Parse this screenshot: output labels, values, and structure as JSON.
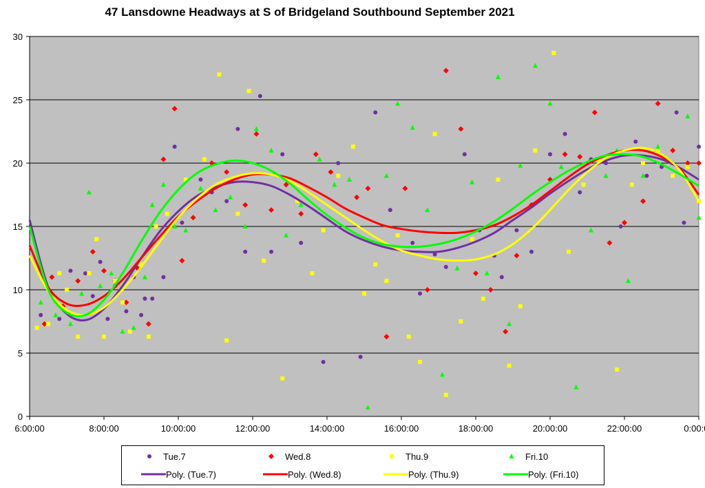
{
  "chart_data": {
    "type": "scatter",
    "title": "47 Lansdowne Headways at S of Bridgeland Southbound September 2021",
    "xlabel": "",
    "ylabel": "",
    "xlim": [
      6,
      24
    ],
    "ylim": [
      0,
      30
    ],
    "x_ticks": [
      "6:00:00",
      "8:00:00",
      "10:00:00",
      "12:00:00",
      "14:00:00",
      "16:00:00",
      "18:00:00",
      "20:00:00",
      "22:00:00",
      "0:00:00"
    ],
    "y_ticks": [
      "0",
      "5",
      "10",
      "15",
      "20",
      "25",
      "30"
    ],
    "grid": "horizontal",
    "plot_background": "#c0c0c0",
    "legend_position": "bottom",
    "series": [
      {
        "name": "Tue.7",
        "marker": "circle",
        "color": "#7030a0",
        "x": [
          6.3,
          6.8,
          7.1,
          7.5,
          7.7,
          7.9,
          8.1,
          8.3,
          8.6,
          8.8,
          9.0,
          9.1,
          9.3,
          9.6,
          9.9,
          10.1,
          10.6,
          10.9,
          11.3,
          11.6,
          11.8,
          12.2,
          12.5,
          12.8,
          13.3,
          13.9,
          14.3,
          14.9,
          15.3,
          15.7,
          16.3,
          16.5,
          16.9,
          17.2,
          17.7,
          18.1,
          18.5,
          18.7,
          19.1,
          19.5,
          20.0,
          20.4,
          20.8,
          21.1,
          21.5,
          21.9,
          22.3,
          22.6,
          23.0,
          23.4,
          23.6,
          24.0
        ],
        "y": [
          8.0,
          7.7,
          11.5,
          11.3,
          9.5,
          12.2,
          7.7,
          10.3,
          8.3,
          11.0,
          8.0,
          9.3,
          9.3,
          11.0,
          21.3,
          15.3,
          18.7,
          17.7,
          17.0,
          22.7,
          13.0,
          25.3,
          13.0,
          20.7,
          13.7,
          4.3,
          20.0,
          4.7,
          24.0,
          16.3,
          13.7,
          9.7,
          12.8,
          11.8,
          20.7,
          14.7,
          12.7,
          11.0,
          14.7,
          13.0,
          20.7,
          22.3,
          17.7,
          20.3,
          20.0,
          15.0,
          21.7,
          19.0,
          19.7,
          24.0,
          15.3,
          21.3
        ]
      },
      {
        "name": "Wed.8",
        "marker": "diamond",
        "color": "#ff0000",
        "x": [
          6.4,
          6.6,
          6.9,
          7.3,
          7.7,
          8.0,
          8.3,
          8.6,
          8.9,
          9.2,
          9.6,
          9.9,
          10.1,
          10.4,
          10.9,
          11.3,
          11.8,
          12.1,
          12.5,
          12.9,
          13.3,
          13.7,
          14.1,
          14.8,
          15.1,
          15.6,
          16.1,
          16.7,
          17.2,
          17.6,
          18.0,
          18.4,
          18.8,
          19.1,
          19.5,
          20.0,
          20.4,
          20.8,
          21.2,
          21.6,
          22.0,
          22.5,
          22.9,
          23.3,
          23.7,
          24.0
        ],
        "y": [
          7.3,
          11.0,
          8.7,
          10.7,
          13.0,
          11.5,
          10.7,
          9.0,
          11.7,
          7.3,
          20.3,
          24.3,
          12.3,
          15.7,
          20.0,
          19.3,
          16.7,
          22.3,
          16.3,
          18.3,
          16.0,
          20.7,
          19.3,
          17.3,
          18.0,
          6.3,
          18.0,
          10.0,
          27.3,
          22.7,
          11.3,
          10.0,
          6.7,
          12.7,
          16.7,
          18.7,
          20.7,
          20.5,
          24.0,
          13.7,
          15.3,
          17.0,
          24.7,
          21.0,
          20.0,
          20.0
        ]
      },
      {
        "name": "Thu.9",
        "marker": "square",
        "color": "#ffff00",
        "x": [
          6.2,
          6.5,
          6.8,
          7.0,
          7.3,
          7.6,
          7.8,
          8.0,
          8.3,
          8.5,
          8.7,
          9.0,
          9.2,
          9.4,
          9.7,
          10.2,
          10.7,
          11.1,
          11.3,
          11.6,
          11.9,
          12.3,
          12.8,
          13.2,
          13.6,
          13.9,
          14.3,
          14.7,
          15.0,
          15.3,
          15.6,
          15.9,
          16.2,
          16.5,
          16.9,
          17.2,
          17.6,
          17.9,
          18.2,
          18.6,
          18.9,
          19.2,
          19.6,
          20.1,
          20.5,
          20.9,
          21.3,
          21.8,
          22.2,
          22.5,
          22.9,
          23.3,
          23.7,
          24.0
        ],
        "y": [
          7.0,
          7.3,
          11.3,
          10.0,
          6.3,
          11.3,
          14.0,
          6.3,
          10.7,
          9.0,
          6.7,
          12.0,
          6.3,
          15.0,
          16.0,
          18.7,
          20.3,
          27.0,
          6.0,
          16.0,
          25.7,
          12.3,
          3.0,
          17.0,
          11.3,
          14.7,
          19.0,
          21.3,
          9.7,
          12.0,
          10.7,
          14.3,
          6.3,
          4.3,
          22.3,
          1.7,
          7.5,
          14.0,
          9.3,
          18.7,
          4.0,
          8.7,
          21.0,
          28.7,
          13.0,
          18.3,
          20.3,
          3.7,
          18.3,
          20.0,
          21.0,
          19.0,
          19.7,
          17.0
        ]
      },
      {
        "name": "Fri.10",
        "marker": "triangle",
        "color": "#00ff00",
        "x": [
          6.3,
          6.7,
          7.1,
          7.4,
          7.6,
          7.9,
          8.2,
          8.5,
          8.8,
          9.1,
          9.3,
          9.6,
          9.9,
          10.2,
          10.6,
          11.0,
          11.4,
          11.8,
          12.1,
          12.5,
          12.9,
          13.3,
          13.8,
          14.2,
          14.6,
          15.1,
          15.6,
          15.9,
          16.3,
          16.7,
          17.1,
          17.5,
          17.9,
          18.3,
          18.6,
          18.9,
          19.2,
          19.6,
          20.0,
          20.3,
          20.7,
          21.1,
          21.5,
          21.8,
          22.1,
          22.5,
          22.9,
          23.3,
          23.7,
          24.0
        ],
        "y": [
          9.0,
          8.0,
          7.3,
          9.7,
          17.7,
          10.3,
          11.3,
          6.7,
          7.0,
          11.0,
          16.7,
          18.3,
          15.0,
          14.7,
          18.0,
          16.3,
          17.3,
          15.0,
          22.7,
          21.0,
          14.3,
          16.7,
          20.3,
          18.3,
          18.7,
          0.7,
          19.0,
          24.7,
          22.8,
          16.3,
          3.3,
          11.7,
          18.5,
          11.3,
          26.8,
          7.3,
          19.8,
          27.7,
          24.7,
          19.7,
          2.3,
          14.7,
          19.0,
          21.0,
          10.7,
          19.0,
          21.3,
          20.0,
          23.7,
          15.7
        ]
      }
    ],
    "trendlines": [
      {
        "name": "Poly. (Tue.7)",
        "color": "#7030a0",
        "points": [
          [
            6.0,
            15.5
          ],
          [
            6.5,
            10.2
          ],
          [
            7.0,
            8.1
          ],
          [
            7.5,
            7.6
          ],
          [
            8.0,
            8.5
          ],
          [
            8.5,
            10.3
          ],
          [
            9.0,
            12.5
          ],
          [
            9.5,
            14.6
          ],
          [
            10.0,
            16.2
          ],
          [
            10.5,
            17.4
          ],
          [
            11.0,
            18.1
          ],
          [
            11.5,
            18.5
          ],
          [
            12.0,
            18.5
          ],
          [
            12.5,
            18.2
          ],
          [
            13.0,
            17.5
          ],
          [
            13.5,
            16.6
          ],
          [
            14.0,
            15.6
          ],
          [
            14.5,
            14.6
          ],
          [
            15.0,
            13.9
          ],
          [
            15.5,
            13.4
          ],
          [
            16.0,
            13.1
          ],
          [
            16.5,
            13.0
          ],
          [
            17.0,
            13.0
          ],
          [
            17.5,
            13.3
          ],
          [
            18.0,
            13.8
          ],
          [
            18.5,
            14.5
          ],
          [
            19.0,
            15.5
          ],
          [
            19.5,
            16.5
          ],
          [
            20.0,
            17.6
          ],
          [
            20.5,
            18.6
          ],
          [
            21.0,
            19.5
          ],
          [
            21.5,
            20.2
          ],
          [
            22.0,
            20.6
          ],
          [
            22.5,
            20.6
          ],
          [
            23.0,
            20.3
          ],
          [
            23.5,
            19.6
          ],
          [
            24.0,
            18.7
          ]
        ]
      },
      {
        "name": "Poly. (Wed.8)",
        "color": "#ff0000",
        "points": [
          [
            6.0,
            13.5
          ],
          [
            6.5,
            10.2
          ],
          [
            7.0,
            8.9
          ],
          [
            7.5,
            8.8
          ],
          [
            8.0,
            9.5
          ],
          [
            8.5,
            10.8
          ],
          [
            9.0,
            12.5
          ],
          [
            9.5,
            14.2
          ],
          [
            10.0,
            15.8
          ],
          [
            10.5,
            17.0
          ],
          [
            11.0,
            18.0
          ],
          [
            11.5,
            18.7
          ],
          [
            12.0,
            19.1
          ],
          [
            12.5,
            19.1
          ],
          [
            13.0,
            18.8
          ],
          [
            13.5,
            18.1
          ],
          [
            14.0,
            17.3
          ],
          [
            14.5,
            16.4
          ],
          [
            15.0,
            15.7
          ],
          [
            15.5,
            15.1
          ],
          [
            16.0,
            14.8
          ],
          [
            16.5,
            14.6
          ],
          [
            17.0,
            14.5
          ],
          [
            17.5,
            14.5
          ],
          [
            18.0,
            14.7
          ],
          [
            18.5,
            15.1
          ],
          [
            19.0,
            15.8
          ],
          [
            19.5,
            16.7
          ],
          [
            20.0,
            17.8
          ],
          [
            20.5,
            18.9
          ],
          [
            21.0,
            19.9
          ],
          [
            21.5,
            20.6
          ],
          [
            22.0,
            21.0
          ],
          [
            22.5,
            21.0
          ],
          [
            23.0,
            20.5
          ],
          [
            23.5,
            19.5
          ],
          [
            24.0,
            17.5
          ]
        ]
      },
      {
        "name": "Poly. (Thu.9)",
        "color": "#ffff00",
        "points": [
          [
            6.0,
            12.7
          ],
          [
            6.5,
            9.9
          ],
          [
            7.0,
            8.4
          ],
          [
            7.5,
            8.0
          ],
          [
            8.0,
            8.6
          ],
          [
            8.5,
            10.0
          ],
          [
            9.0,
            11.8
          ],
          [
            9.5,
            13.8
          ],
          [
            10.0,
            15.7
          ],
          [
            10.5,
            17.2
          ],
          [
            11.0,
            18.3
          ],
          [
            11.5,
            18.9
          ],
          [
            12.0,
            19.2
          ],
          [
            12.5,
            19.1
          ],
          [
            13.0,
            18.6
          ],
          [
            13.5,
            17.7
          ],
          [
            14.0,
            16.7
          ],
          [
            14.5,
            15.7
          ],
          [
            15.0,
            14.7
          ],
          [
            15.5,
            13.8
          ],
          [
            16.0,
            13.1
          ],
          [
            16.5,
            12.7
          ],
          [
            17.0,
            12.4
          ],
          [
            17.5,
            12.3
          ],
          [
            18.0,
            12.4
          ],
          [
            18.5,
            12.8
          ],
          [
            19.0,
            13.6
          ],
          [
            19.5,
            14.8
          ],
          [
            20.0,
            16.3
          ],
          [
            20.5,
            17.9
          ],
          [
            21.0,
            19.3
          ],
          [
            21.5,
            20.4
          ],
          [
            22.0,
            21.0
          ],
          [
            22.5,
            21.2
          ],
          [
            23.0,
            20.7
          ],
          [
            23.5,
            19.4
          ],
          [
            24.0,
            17.0
          ]
        ]
      },
      {
        "name": "Poly. (Fri.10)",
        "color": "#00ff00",
        "points": [
          [
            6.0,
            15.0
          ],
          [
            6.5,
            10.0
          ],
          [
            7.0,
            8.2
          ],
          [
            7.5,
            8.0
          ],
          [
            8.0,
            9.2
          ],
          [
            8.5,
            11.3
          ],
          [
            9.0,
            13.8
          ],
          [
            9.5,
            16.1
          ],
          [
            10.0,
            17.9
          ],
          [
            10.5,
            19.2
          ],
          [
            11.0,
            19.9
          ],
          [
            11.5,
            20.2
          ],
          [
            12.0,
            20.0
          ],
          [
            12.5,
            19.4
          ],
          [
            13.0,
            18.4
          ],
          [
            13.5,
            17.1
          ],
          [
            14.0,
            15.9
          ],
          [
            14.5,
            14.9
          ],
          [
            15.0,
            14.1
          ],
          [
            15.5,
            13.6
          ],
          [
            16.0,
            13.4
          ],
          [
            16.5,
            13.4
          ],
          [
            17.0,
            13.6
          ],
          [
            17.5,
            14.0
          ],
          [
            18.0,
            14.6
          ],
          [
            18.5,
            15.4
          ],
          [
            19.0,
            16.4
          ],
          [
            19.5,
            17.5
          ],
          [
            20.0,
            18.5
          ],
          [
            20.5,
            19.4
          ],
          [
            21.0,
            20.1
          ],
          [
            21.5,
            20.6
          ],
          [
            22.0,
            20.7
          ],
          [
            22.5,
            20.5
          ],
          [
            23.0,
            19.9
          ],
          [
            23.5,
            19.1
          ],
          [
            24.0,
            18.2
          ]
        ]
      }
    ]
  }
}
